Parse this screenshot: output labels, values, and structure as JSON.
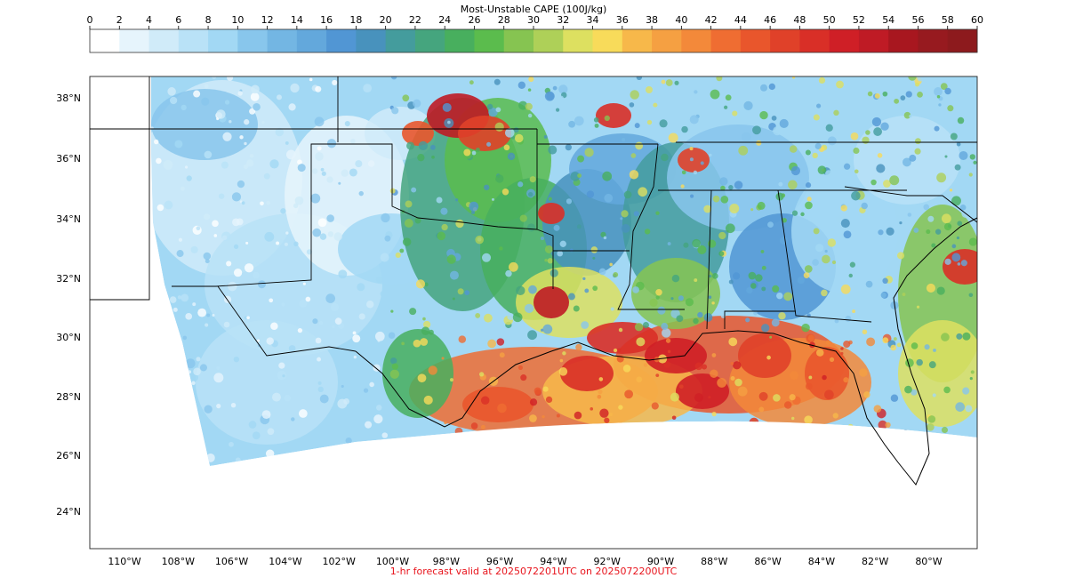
{
  "colorbar": {
    "title": "Most-Unstable CAPE (100J/kg)",
    "ticks": [
      "0",
      "2",
      "4",
      "6",
      "8",
      "10",
      "12",
      "14",
      "16",
      "18",
      "20",
      "22",
      "24",
      "26",
      "28",
      "30",
      "32",
      "34",
      "36",
      "38",
      "40",
      "42",
      "44",
      "46",
      "48",
      "50",
      "52",
      "54",
      "56",
      "58",
      "60"
    ],
    "colors": [
      "#ffffff",
      "#e6f4fc",
      "#d0ebf9",
      "#b9e2f7",
      "#a2d8f4",
      "#88c6ec",
      "#73b6e3",
      "#63a8dc",
      "#5196d4",
      "#4892bd",
      "#449c9d",
      "#45a57e",
      "#48af5e",
      "#5bbc4d",
      "#86c451",
      "#aed058",
      "#dde060",
      "#f8db5a",
      "#f7b84a",
      "#f5a042",
      "#f3893a",
      "#ef6d32",
      "#e9562c",
      "#e04129",
      "#d92f27",
      "#cf1f26",
      "#bf1b25",
      "#a8171f",
      "#971a1f",
      "#8d1a1d"
    ]
  },
  "map": {
    "lat_labels": [
      "38°N",
      "36°N",
      "34°N",
      "32°N",
      "30°N",
      "28°N",
      "26°N",
      "24°N"
    ],
    "lon_labels": [
      "110°W",
      "108°W",
      "106°W",
      "104°W",
      "102°W",
      "100°W",
      "98°W",
      "96°W",
      "94°W",
      "92°W",
      "90°W",
      "88°W",
      "86°W",
      "84°W",
      "82°W",
      "80°W"
    ],
    "field_palette_note_colors": {
      "water_bg": "#ffffff",
      "border": "#000000"
    }
  },
  "footer": {
    "text": "1-hr forecast valid at 2025072201UTC on 2025072200UTC",
    "color": "#e8141c"
  }
}
